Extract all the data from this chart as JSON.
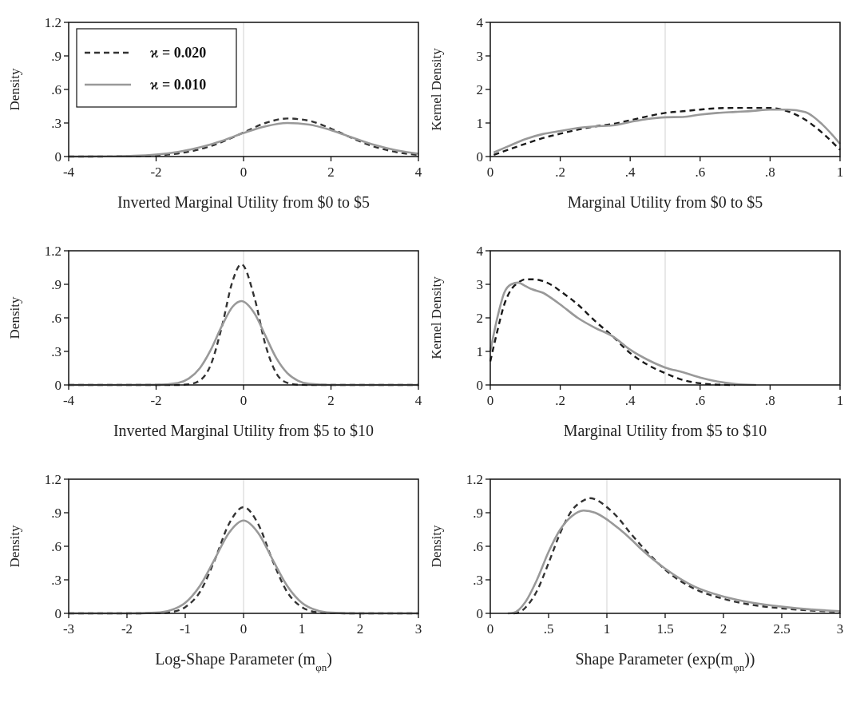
{
  "chart_data": [
    {
      "type": "line",
      "xlabel": "Inverted Marginal Utility from $0 to $5",
      "ylabel": "Density",
      "xlim": [
        -4,
        4
      ],
      "xticks": [
        -4,
        -2,
        0,
        2,
        4
      ],
      "ylim": [
        0,
        1.2
      ],
      "yticks": [
        0,
        {
          "value": 0.3,
          "label": ".3"
        },
        {
          "value": 0.6,
          "label": ".6"
        },
        {
          "value": 0.9,
          "label": ".9"
        },
        1.2
      ],
      "legend": "top left",
      "ref_lines": [
        {
          "axis": "x",
          "value": 0,
          "color": "#d9d9d9"
        }
      ],
      "series": [
        {
          "name": "ϰ = 0.020",
          "color": "#333333",
          "line_style": "dashed",
          "x": [
            -4,
            -3.5,
            -3,
            -2.5,
            -2,
            -1.5,
            -1,
            -0.5,
            0,
            0.5,
            1,
            1.5,
            2,
            2.5,
            3,
            3.5,
            4
          ],
          "values": [
            0,
            0,
            0.001,
            0.003,
            0.009,
            0.027,
            0.065,
            0.129,
            0.215,
            0.3,
            0.34,
            0.32,
            0.25,
            0.162,
            0.087,
            0.039,
            0.014
          ]
        },
        {
          "name": "ϰ = 0.010",
          "color": "#999999",
          "line_style": "solid",
          "x": [
            -4,
            -3.5,
            -3,
            -2.5,
            -2,
            -1.5,
            -1,
            -0.5,
            0,
            0.5,
            1,
            1.5,
            2,
            2.5,
            3,
            3.5,
            4
          ],
          "values": [
            0,
            0.001,
            0.002,
            0.006,
            0.018,
            0.041,
            0.082,
            0.14,
            0.21,
            0.27,
            0.3,
            0.286,
            0.236,
            0.168,
            0.103,
            0.055,
            0.025
          ]
        }
      ]
    },
    {
      "type": "line",
      "xlabel": "Marginal Utility from $0 to $5",
      "ylabel": "Kernel Density",
      "xlim": [
        0,
        1
      ],
      "xticks": [
        0,
        {
          "value": 0.2,
          "label": ".2"
        },
        {
          "value": 0.4,
          "label": ".4"
        },
        {
          "value": 0.6,
          "label": ".6"
        },
        {
          "value": 0.8,
          "label": ".8"
        },
        1
      ],
      "ylim": [
        0,
        4
      ],
      "yticks": [
        0,
        1,
        2,
        3,
        4
      ],
      "ref_lines": [
        {
          "axis": "x",
          "value": 0.5,
          "color": "#d9d9d9"
        }
      ],
      "series": [
        {
          "color": "#1a1a1a",
          "line_style": "dashed",
          "x": [
            0.01,
            0.05,
            0.1,
            0.15,
            0.2,
            0.25,
            0.3,
            0.35,
            0.4,
            0.45,
            0.5,
            0.55,
            0.6,
            0.65,
            0.7,
            0.75,
            0.8,
            0.85,
            0.9,
            0.95,
            1
          ],
          "values": [
            0.05,
            0.2,
            0.38,
            0.55,
            0.68,
            0.8,
            0.9,
            0.97,
            1.08,
            1.2,
            1.3,
            1.35,
            1.4,
            1.44,
            1.45,
            1.45,
            1.45,
            1.35,
            1.1,
            0.7,
            0.2
          ]
        },
        {
          "color": "#999999",
          "line_style": "solid",
          "x": [
            0.01,
            0.05,
            0.1,
            0.15,
            0.2,
            0.25,
            0.3,
            0.35,
            0.4,
            0.45,
            0.5,
            0.55,
            0.6,
            0.65,
            0.7,
            0.75,
            0.8,
            0.85,
            0.9,
            0.95,
            1
          ],
          "values": [
            0.12,
            0.3,
            0.52,
            0.67,
            0.76,
            0.85,
            0.9,
            0.93,
            1.03,
            1.12,
            1.17,
            1.18,
            1.25,
            1.3,
            1.33,
            1.36,
            1.4,
            1.4,
            1.33,
            0.95,
            0.38
          ]
        }
      ]
    },
    {
      "type": "line",
      "xlabel": "Inverted Marginal Utility from $5 to $10",
      "ylabel": "Density",
      "xlim": [
        -4,
        4
      ],
      "xticks": [
        -4,
        -2,
        0,
        2,
        4
      ],
      "ylim": [
        0,
        1.2
      ],
      "yticks": [
        0,
        {
          "value": 0.3,
          "label": ".3"
        },
        {
          "value": 0.6,
          "label": ".6"
        },
        {
          "value": 0.9,
          "label": ".9"
        },
        1.2
      ],
      "ref_lines": [
        {
          "axis": "x",
          "value": 0,
          "color": "#d9d9d9"
        }
      ],
      "series": [
        {
          "color": "#333333",
          "line_style": "dashed",
          "x": [
            -4,
            -3,
            -2,
            -1.5,
            -1.25,
            -1,
            -0.75,
            -0.5,
            -0.25,
            -0.05,
            0.25,
            0.5,
            0.75,
            1,
            1.25,
            1.5,
            2,
            3,
            4
          ],
          "values": [
            0,
            0,
            0,
            0,
            0.006,
            0.04,
            0.18,
            0.515,
            0.93,
            1.08,
            0.78,
            0.36,
            0.104,
            0.019,
            0.002,
            0,
            0,
            0,
            0
          ]
        },
        {
          "color": "#999999",
          "line_style": "solid",
          "x": [
            -4,
            -3,
            -2,
            -1.5,
            -1.25,
            -1,
            -0.75,
            -0.5,
            -0.25,
            -0.05,
            0.25,
            0.5,
            0.75,
            1,
            1.25,
            1.5,
            2,
            3,
            4
          ],
          "values": [
            0,
            0,
            0.001,
            0.018,
            0.058,
            0.15,
            0.314,
            0.524,
            0.7,
            0.75,
            0.64,
            0.44,
            0.24,
            0.106,
            0.037,
            0.01,
            0,
            0,
            0
          ]
        }
      ]
    },
    {
      "type": "line",
      "xlabel": "Marginal Utility from $5 to $10",
      "ylabel": "Kernel Density",
      "xlim": [
        0,
        1
      ],
      "xticks": [
        0,
        {
          "value": 0.2,
          "label": ".2"
        },
        {
          "value": 0.4,
          "label": ".4"
        },
        {
          "value": 0.6,
          "label": ".6"
        },
        {
          "value": 0.8,
          "label": ".8"
        },
        1
      ],
      "ylim": [
        0,
        4
      ],
      "yticks": [
        0,
        1,
        2,
        3,
        4
      ],
      "ref_lines": [
        {
          "axis": "x",
          "value": 0.5,
          "color": "#d9d9d9"
        }
      ],
      "series": [
        {
          "color": "#1a1a1a",
          "line_style": "dashed",
          "x": [
            0,
            0.02,
            0.04,
            0.06,
            0.08,
            0.1,
            0.12,
            0.15,
            0.18,
            0.2,
            0.25,
            0.3,
            0.35,
            0.4,
            0.45,
            0.5,
            0.55,
            0.6,
            0.65,
            0.7
          ],
          "values": [
            0.7,
            1.6,
            2.4,
            2.85,
            3.05,
            3.15,
            3.15,
            3.1,
            2.95,
            2.8,
            2.4,
            1.9,
            1.45,
            0.95,
            0.6,
            0.35,
            0.15,
            0.05,
            0.01,
            0
          ]
        },
        {
          "color": "#999999",
          "line_style": "solid",
          "x": [
            0,
            0.02,
            0.04,
            0.06,
            0.08,
            0.1,
            0.12,
            0.15,
            0.18,
            0.2,
            0.25,
            0.3,
            0.35,
            0.4,
            0.45,
            0.5,
            0.55,
            0.6,
            0.65,
            0.7,
            0.76
          ],
          "values": [
            1,
            2,
            2.75,
            3,
            3.05,
            2.95,
            2.85,
            2.75,
            2.55,
            2.4,
            2,
            1.7,
            1.45,
            1.05,
            0.75,
            0.52,
            0.38,
            0.22,
            0.1,
            0.03,
            0
          ]
        }
      ]
    },
    {
      "type": "line",
      "xlabel": "Log-Shape Parameter (m$_{φn}$)",
      "ylabel": "Density",
      "xlim": [
        -3,
        3
      ],
      "xticks": [
        -3,
        -2,
        -1,
        0,
        1,
        2,
        3
      ],
      "ylim": [
        0,
        1.2
      ],
      "yticks": [
        0,
        {
          "value": 0.3,
          "label": ".3"
        },
        {
          "value": 0.6,
          "label": ".6"
        },
        {
          "value": 0.9,
          "label": ".9"
        },
        1.2
      ],
      "ref_lines": [
        {
          "axis": "x",
          "value": 0,
          "color": "#d9d9d9"
        }
      ],
      "series": [
        {
          "color": "#333333",
          "line_style": "dashed",
          "x": [
            -3,
            -2,
            -1.5,
            -1.25,
            -1,
            -0.75,
            -0.5,
            -0.25,
            0,
            0.25,
            0.5,
            0.75,
            1,
            1.25,
            1.5,
            2,
            3
          ],
          "values": [
            0,
            0,
            0.002,
            0.011,
            0.056,
            0.19,
            0.47,
            0.8,
            0.95,
            0.8,
            0.47,
            0.19,
            0.056,
            0.011,
            0.002,
            0,
            0
          ]
        },
        {
          "color": "#999999",
          "line_style": "solid",
          "x": [
            -3,
            -2,
            -1.5,
            -1.25,
            -1,
            -0.75,
            -0.5,
            -0.25,
            0,
            0.25,
            0.5,
            0.75,
            1,
            1.25,
            1.5,
            2,
            3
          ],
          "values": [
            0,
            0,
            0.006,
            0.028,
            0.095,
            0.245,
            0.48,
            0.72,
            0.83,
            0.72,
            0.48,
            0.245,
            0.095,
            0.028,
            0.006,
            0,
            0
          ]
        }
      ]
    },
    {
      "type": "line",
      "xlabel": "Shape Parameter (exp(m$_{φn}$))",
      "ylabel": "Density",
      "xlim": [
        0,
        3
      ],
      "xticks": [
        0,
        {
          "value": 0.5,
          "label": ".5"
        },
        1,
        1.5,
        2,
        2.5,
        3
      ],
      "ylim": [
        0,
        1.2
      ],
      "yticks": [
        0,
        {
          "value": 0.3,
          "label": ".3"
        },
        {
          "value": 0.6,
          "label": ".6"
        },
        {
          "value": 0.9,
          "label": ".9"
        },
        1.2
      ],
      "ref_lines": [
        {
          "axis": "x",
          "value": 1,
          "color": "#d9d9d9"
        }
      ],
      "series": [
        {
          "color": "#333333",
          "line_style": "dashed",
          "x": [
            0.2,
            0.25,
            0.3,
            0.4,
            0.5,
            0.6,
            0.7,
            0.8,
            0.85,
            0.9,
            1,
            1.1,
            1.2,
            1.3,
            1.4,
            1.5,
            1.75,
            2,
            2.25,
            2.5,
            2.75,
            3
          ],
          "values": [
            0,
            0.01,
            0.05,
            0.2,
            0.45,
            0.72,
            0.92,
            1.01,
            1.03,
            1.02,
            0.95,
            0.85,
            0.72,
            0.6,
            0.49,
            0.39,
            0.22,
            0.13,
            0.075,
            0.045,
            0.025,
            0.015
          ]
        },
        {
          "color": "#999999",
          "line_style": "solid",
          "x": [
            0.15,
            0.2,
            0.3,
            0.4,
            0.5,
            0.6,
            0.7,
            0.8,
            0.9,
            1,
            1.1,
            1.2,
            1.3,
            1.4,
            1.5,
            1.75,
            2,
            2.25,
            2.5,
            2.75,
            3
          ],
          "values": [
            0,
            0.005,
            0.1,
            0.3,
            0.55,
            0.75,
            0.87,
            0.92,
            0.9,
            0.84,
            0.76,
            0.67,
            0.57,
            0.48,
            0.4,
            0.24,
            0.15,
            0.095,
            0.06,
            0.035,
            0.02
          ]
        }
      ]
    }
  ]
}
